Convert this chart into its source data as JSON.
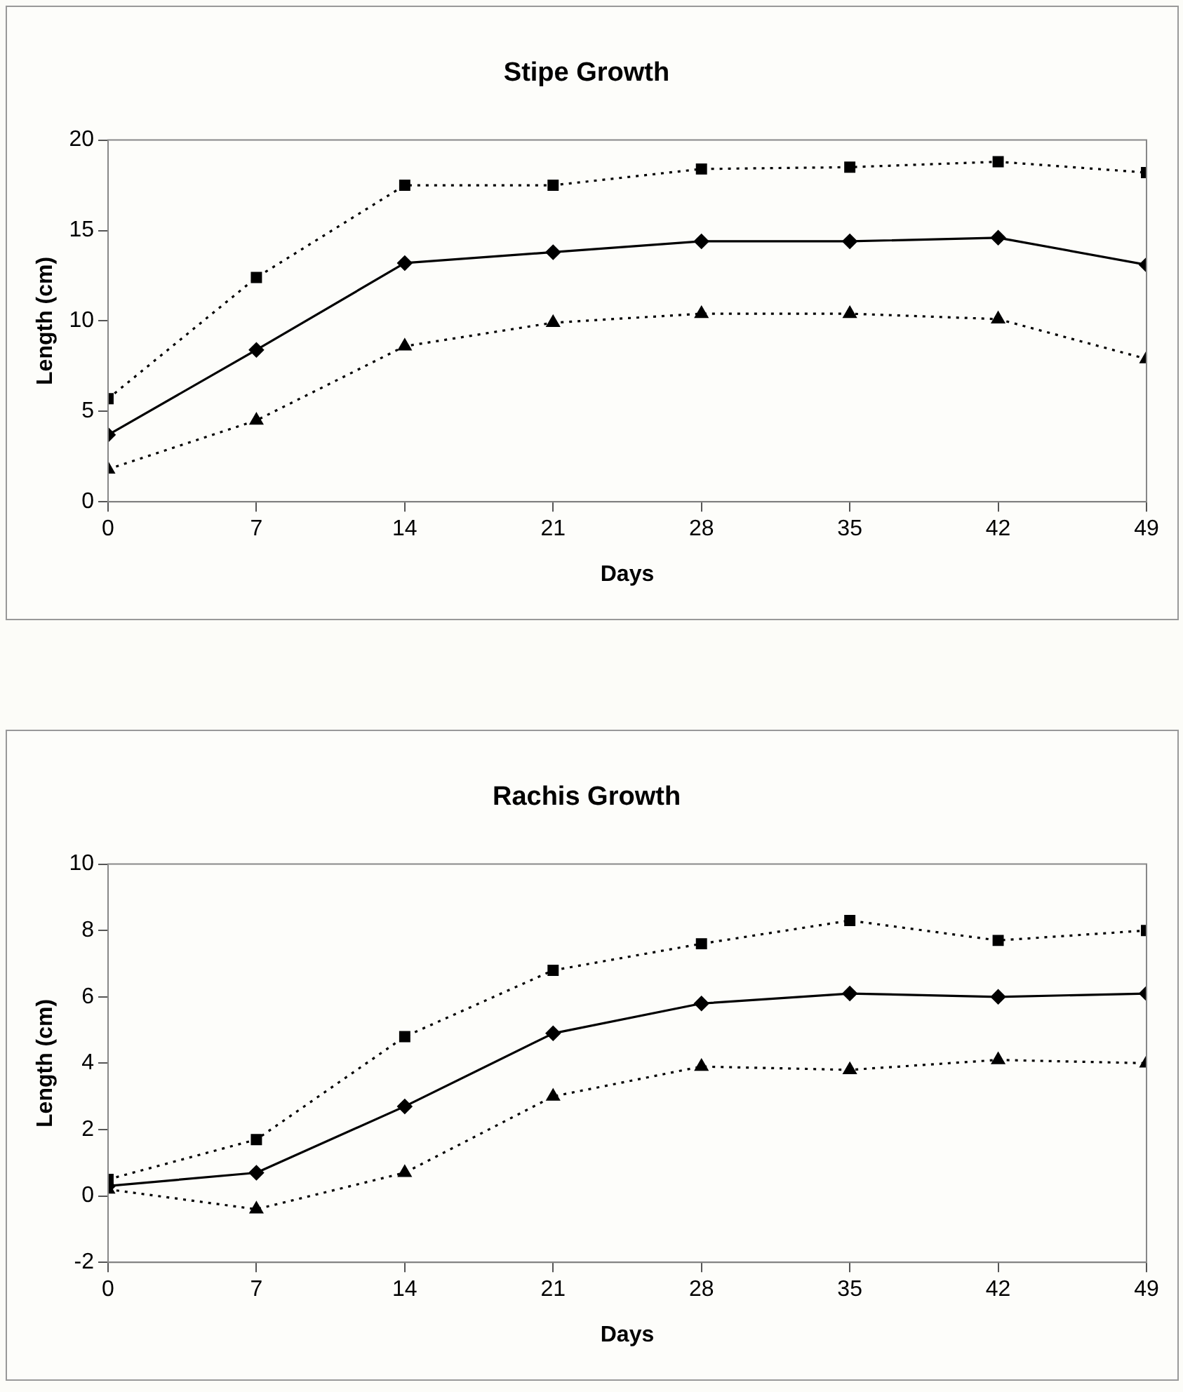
{
  "chart_data": [
    {
      "type": "line",
      "title": "Stipe Growth",
      "xlabel": "Days",
      "ylabel": "Length (cm)",
      "x": [
        0,
        7,
        14,
        21,
        28,
        35,
        42,
        49
      ],
      "xlim": [
        0,
        49
      ],
      "xticks": [
        0,
        7,
        14,
        21,
        28,
        35,
        42,
        49
      ],
      "ylim": [
        0,
        20
      ],
      "yticks": [
        0,
        5,
        10,
        15,
        20
      ],
      "grid": false,
      "legend": false,
      "series": [
        {
          "color": "#000000",
          "marker": "square",
          "line_style": "dotted",
          "values": [
            5.7,
            12.4,
            17.5,
            17.5,
            18.4,
            18.5,
            18.8,
            18.2
          ]
        },
        {
          "color": "#000000",
          "marker": "diamond",
          "line_style": "solid",
          "values": [
            3.7,
            8.4,
            13.2,
            13.8,
            14.4,
            14.4,
            14.6,
            13.1
          ]
        },
        {
          "color": "#000000",
          "marker": "triangle",
          "line_style": "dotted",
          "values": [
            1.8,
            4.5,
            8.6,
            9.9,
            10.4,
            10.4,
            10.1,
            7.9
          ]
        }
      ]
    },
    {
      "type": "line",
      "title": "Rachis Growth",
      "xlabel": "Days",
      "ylabel": "Length (cm)",
      "x": [
        0,
        7,
        14,
        21,
        28,
        35,
        42,
        49
      ],
      "xlim": [
        0,
        49
      ],
      "xticks": [
        0,
        7,
        14,
        21,
        28,
        35,
        42,
        49
      ],
      "ylim": [
        -2,
        10
      ],
      "yticks": [
        -2,
        0,
        2,
        4,
        6,
        8,
        10
      ],
      "grid": false,
      "legend": false,
      "series": [
        {
          "color": "#000000",
          "marker": "square",
          "line_style": "dotted",
          "values": [
            0.5,
            1.7,
            4.8,
            6.8,
            7.6,
            8.3,
            7.7,
            8.0
          ]
        },
        {
          "color": "#000000",
          "marker": "diamond",
          "line_style": "solid",
          "values": [
            0.3,
            0.7,
            2.7,
            4.9,
            5.8,
            6.1,
            6.0,
            6.1
          ]
        },
        {
          "color": "#000000",
          "marker": "triangle",
          "line_style": "dotted",
          "values": [
            0.2,
            -0.4,
            0.7,
            3.0,
            3.9,
            3.8,
            4.1,
            4.0
          ]
        }
      ]
    }
  ]
}
